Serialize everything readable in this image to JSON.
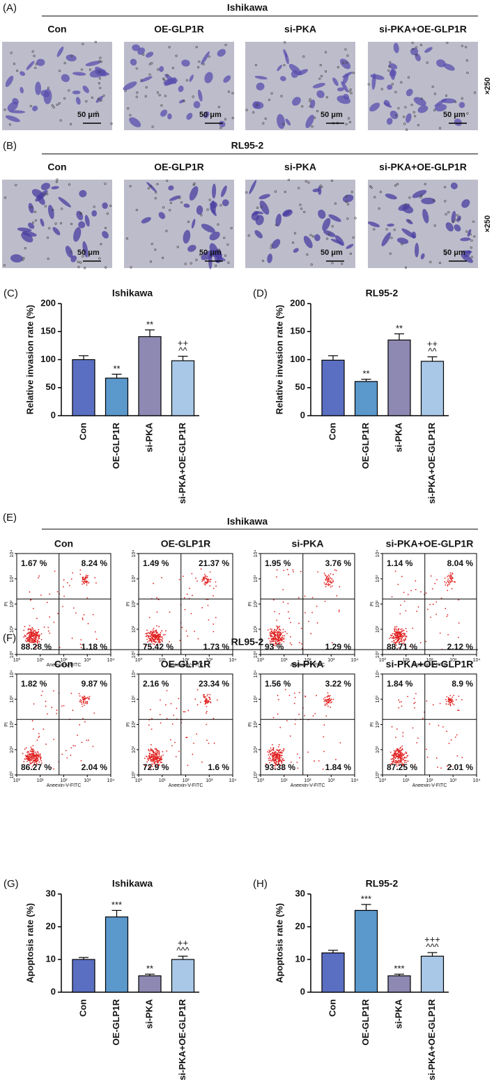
{
  "panels": [
    {
      "label": "(A)",
      "title": "Ishikawa",
      "images": [
        "Con",
        "OE-GLP1R",
        "si-PKA",
        "si-PKA+OE-GLP1R"
      ],
      "scale_bar": "50 μm",
      "magnification": "×250"
    },
    {
      "label": "(B)",
      "title": "RL95-2",
      "images": [
        "Con",
        "OE-GLP1R",
        "si-PKA",
        "si-PKA+OE-GLP1R"
      ],
      "scale_bar": "50 μm",
      "magnification": "×250"
    }
  ],
  "flow": [
    {
      "label": "(E)",
      "title": "Ishikawa",
      "x_label": "Aneexin-V-FITC",
      "y_label": "PI",
      "ticks": [
        {
          "value": 1,
          "label": "10⁰"
        },
        {
          "value": 10,
          "label": "10¹"
        },
        {
          "value": 100,
          "label": "10²"
        },
        {
          "value": 1000,
          "label": "10³"
        },
        {
          "value": 10000,
          "label": "10⁴"
        }
      ],
      "plots": [
        {
          "name": "Con",
          "quadrants": [
            "1.67 %",
            "8.24 %",
            "88.28 %",
            "1.18 %"
          ]
        },
        {
          "name": "OE-GLP1R",
          "quadrants": [
            "1.49 %",
            "21.37 %",
            "75.42 %",
            "1.73 %"
          ]
        },
        {
          "name": "si-PKA",
          "quadrants": [
            "1.95 %",
            "3.76 %",
            "93 %",
            "1.29 %"
          ]
        },
        {
          "name": "si-PKA+OE-GLP1R",
          "quadrants": [
            "1.14 %",
            "8.04 %",
            "88.71 %",
            "2.12 %"
          ]
        }
      ]
    },
    {
      "label": "(F)",
      "title": "RL95-2",
      "x_label": "Aneexin-V-FITC",
      "y_label": "PI",
      "ticks": [
        {
          "value": 1,
          "label": "10⁰"
        },
        {
          "value": 10,
          "label": "10¹"
        },
        {
          "value": 100,
          "label": "10²"
        },
        {
          "value": 1000,
          "label": "10³"
        },
        {
          "value": 10000,
          "label": "10⁴"
        }
      ],
      "plots": [
        {
          "name": "Con",
          "quadrants": [
            "1.82 %",
            "9.87 %",
            "86.27 %",
            "2.04 %"
          ]
        },
        {
          "name": "OE-GLP1R",
          "quadrants": [
            "2.16 %",
            "23.34 %",
            "72.9 %",
            "1.6 %"
          ]
        },
        {
          "name": "si-PKA",
          "quadrants": [
            "1.56 %",
            "3.22 %",
            "93.38 %",
            "1.84 %"
          ]
        },
        {
          "name": "si-PKA+OE-GLP1R",
          "quadrants": [
            "1.84 %",
            "8.9 %",
            "87.25 %",
            "2.01 %"
          ]
        }
      ]
    }
  ],
  "chart_data": [
    {
      "type": "bar",
      "label": "(C)",
      "title": "Ishikawa",
      "y_label": "Relative invasion rate (%)",
      "categories": [
        "Con",
        "OE-GLP1R",
        "si-PKA",
        "si-PKA+OE-GLP1R"
      ],
      "values": [
        100,
        67,
        141,
        98
      ],
      "errors": [
        7,
        7,
        12,
        8
      ],
      "annotations": [
        null,
        [
          "**"
        ],
        [
          "**"
        ],
        [
          "^^",
          "++"
        ]
      ],
      "colors": [
        "#5b6fc2",
        "#5b98cb",
        "#8e89b2",
        "#a9c8e8"
      ],
      "ylim": [
        0,
        200
      ],
      "yticks": [
        0,
        50,
        100,
        150,
        200
      ]
    },
    {
      "type": "bar",
      "label": "(D)",
      "title": "RL95-2",
      "y_label": "Relative invasion rate (%)",
      "categories": [
        "Con",
        "OE-GLP1R",
        "si-PKA",
        "si-PKA+OE-GLP1R"
      ],
      "values": [
        99,
        61,
        135,
        97
      ],
      "errors": [
        8,
        4,
        11,
        8
      ],
      "annotations": [
        null,
        [
          "**"
        ],
        [
          "**"
        ],
        [
          "^^",
          "++"
        ]
      ],
      "colors": [
        "#5b6fc2",
        "#5b98cb",
        "#8e89b2",
        "#a9c8e8"
      ],
      "ylim": [
        0,
        200
      ],
      "yticks": [
        0,
        50,
        100,
        150,
        200
      ]
    },
    {
      "type": "bar",
      "label": "(G)",
      "title": "Ishikawa",
      "y_label": "Apoptosis rate (%)",
      "categories": [
        "Con",
        "OE-GLP1R",
        "si-PKA",
        "si-PKA+OE-GLP1R"
      ],
      "values": [
        10,
        23,
        5,
        10
      ],
      "errors": [
        0.6,
        2,
        0.5,
        1
      ],
      "annotations": [
        null,
        [
          "***"
        ],
        [
          "**"
        ],
        [
          "^^^",
          "++"
        ]
      ],
      "colors": [
        "#5b6fc2",
        "#5b98cb",
        "#8e89b2",
        "#a9c8e8"
      ],
      "ylim": [
        0,
        30
      ],
      "yticks": [
        0,
        10,
        20,
        30
      ]
    },
    {
      "type": "bar",
      "label": "(H)",
      "title": "RL95-2",
      "y_label": "Apoptosis rate (%)",
      "categories": [
        "Con",
        "OE-GLP1R",
        "si-PKA",
        "si-PKA+OE-GLP1R"
      ],
      "values": [
        12,
        25,
        5,
        11
      ],
      "errors": [
        0.8,
        1.8,
        0.5,
        1.1
      ],
      "annotations": [
        null,
        [
          "***"
        ],
        [
          "***"
        ],
        [
          "^^^",
          "+++"
        ]
      ],
      "colors": [
        "#5b6fc2",
        "#5b98cb",
        "#8e89b2",
        "#a9c8e8"
      ],
      "ylim": [
        0,
        30
      ],
      "yticks": [
        0,
        10,
        20,
        30
      ]
    }
  ]
}
